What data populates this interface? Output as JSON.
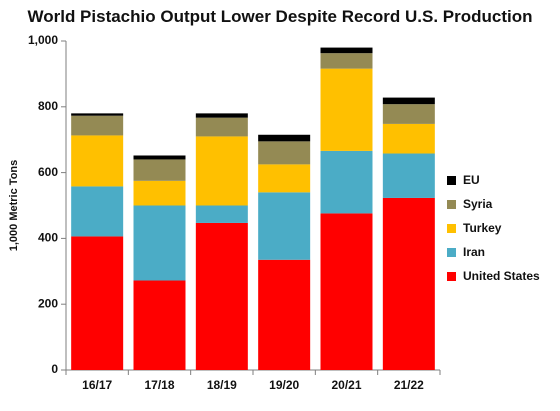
{
  "chart_data": {
    "type": "bar",
    "stacked": true,
    "title": "World Pistachio Output Lower Despite Record U.S. Production",
    "xlabel": "",
    "ylabel": "1,000 Metric Tons",
    "ylim": [
      0,
      1000
    ],
    "yticks": [
      0,
      200,
      400,
      600,
      800,
      1000
    ],
    "ytick_labels": [
      "0",
      "200",
      "400",
      "600",
      "800",
      "1,000"
    ],
    "categories": [
      "16/17",
      "17/18",
      "18/19",
      "19/20",
      "20/21",
      "21/22"
    ],
    "series": [
      {
        "name": "United States",
        "color": "#ff0000",
        "values": [
          406,
          272,
          447,
          335,
          476,
          523
        ]
      },
      {
        "name": "Iran",
        "color": "#4bacc6",
        "values": [
          152,
          228,
          53,
          205,
          190,
          135
        ]
      },
      {
        "name": "Turkey",
        "color": "#ffc000",
        "values": [
          155,
          75,
          210,
          85,
          250,
          90
        ]
      },
      {
        "name": "Syria",
        "color": "#948a54",
        "values": [
          60,
          65,
          57,
          70,
          47,
          60
        ]
      },
      {
        "name": "EU",
        "color": "#000000",
        "values": [
          7,
          12,
          13,
          20,
          17,
          20
        ]
      }
    ],
    "legend": {
      "placement": "right",
      "order": [
        "EU",
        "Syria",
        "Turkey",
        "Iran",
        "United States"
      ]
    },
    "grid": false
  }
}
